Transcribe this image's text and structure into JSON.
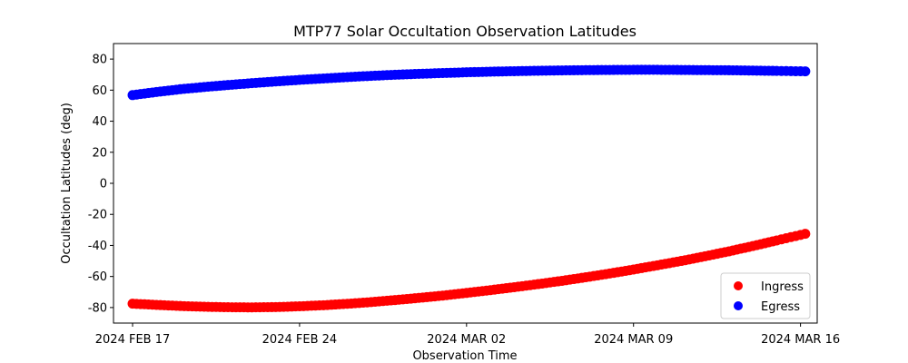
{
  "chart_data": {
    "type": "scatter",
    "title": "MTP77 Solar Occultation Observation Latitudes",
    "xlabel": "Observation Time",
    "ylabel": "Occultation Latitudes (deg)",
    "xlim": [
      -0.8,
      28.7
    ],
    "ylim": [
      -90,
      90
    ],
    "x_ticks": [
      {
        "value": 0,
        "label": "2024 FEB 17"
      },
      {
        "value": 7,
        "label": "2024 FEB 24"
      },
      {
        "value": 14,
        "label": "2024 MAR 02"
      },
      {
        "value": 21,
        "label": "2024 MAR 09"
      },
      {
        "value": 28,
        "label": "2024 MAR 16"
      }
    ],
    "y_ticks": [
      -80,
      -60,
      -40,
      -20,
      0,
      20,
      40,
      60,
      80
    ],
    "legend": {
      "position": "lower-right"
    },
    "series": [
      {
        "name": "Ingress",
        "color": "#ff0000",
        "x": [
          0,
          1,
          2,
          3,
          4,
          5,
          6,
          7,
          8,
          9,
          10,
          11,
          12,
          13,
          14,
          15,
          16,
          17,
          18,
          19,
          20,
          21,
          22,
          23,
          24,
          25,
          26,
          27,
          28.2
        ],
        "y": [
          -77.5,
          -78.3,
          -79.0,
          -79.5,
          -79.8,
          -79.9,
          -79.7,
          -79.2,
          -78.5,
          -77.6,
          -76.5,
          -75.2,
          -73.8,
          -72.3,
          -70.6,
          -68.8,
          -66.9,
          -64.9,
          -62.8,
          -60.5,
          -58.1,
          -55.5,
          -52.8,
          -50.0,
          -47.0,
          -43.8,
          -40.4,
          -36.8,
          -32.5
        ]
      },
      {
        "name": "Egress",
        "color": "#0000ff",
        "x": [
          0,
          1,
          2,
          3,
          4,
          5,
          6,
          7,
          8,
          9,
          10,
          11,
          12,
          13,
          14,
          15,
          16,
          17,
          18,
          19,
          20,
          21,
          22,
          23,
          24,
          25,
          26,
          27,
          28.2
        ],
        "y": [
          56.8,
          58.8,
          60.6,
          62.0,
          63.3,
          64.5,
          65.6,
          66.6,
          67.5,
          68.4,
          69.2,
          69.9,
          70.5,
          71.0,
          71.5,
          71.9,
          72.2,
          72.5,
          72.7,
          72.9,
          73.0,
          73.1,
          73.1,
          73.0,
          72.9,
          72.8,
          72.6,
          72.4,
          72.1
        ]
      }
    ]
  }
}
